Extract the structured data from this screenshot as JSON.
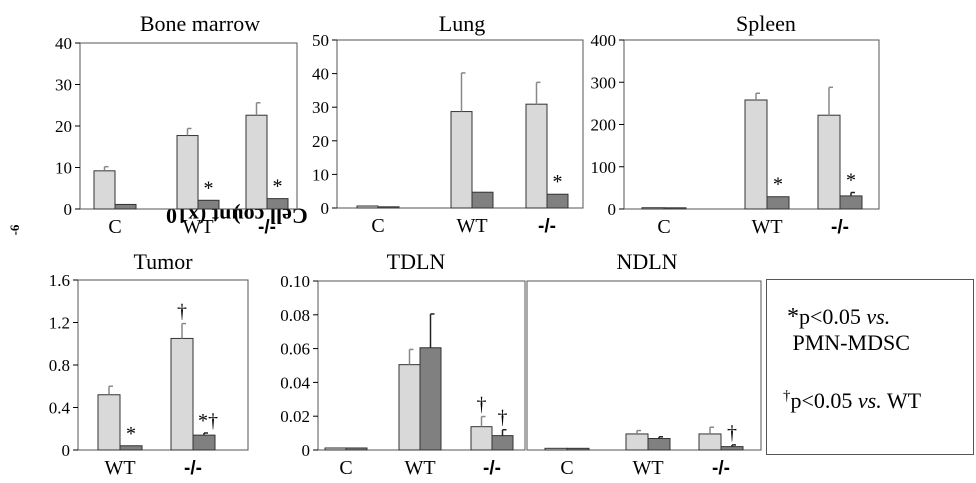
{
  "chart_data": [
    {
      "id": "bm",
      "type": "bar",
      "title": "Bone marrow",
      "categories": [
        "C",
        "WT",
        "-/-"
      ],
      "ylim": [
        0,
        40
      ],
      "yticks": [
        "0",
        "10",
        "20",
        "30",
        "40"
      ],
      "series": [
        {
          "values": [
            9.2,
            17.7,
            22.6
          ],
          "errors": [
            1,
            1.7,
            3
          ]
        },
        {
          "values": [
            1.1,
            2.1,
            2.5
          ],
          "errors": [
            0,
            0,
            0
          ]
        }
      ],
      "annotations": [
        {
          "cat": 1,
          "s": 1,
          "text": "*"
        },
        {
          "cat": 2,
          "s": 1,
          "text": "*"
        }
      ]
    },
    {
      "id": "lung",
      "type": "bar",
      "title": "Lung",
      "categories": [
        "C",
        "WT",
        "-/-"
      ],
      "ylim": [
        0,
        50
      ],
      "yticks": [
        "0",
        "10",
        "20",
        "30",
        "40",
        "50"
      ],
      "series": [
        {
          "values": [
            0.6,
            28.7,
            30.9
          ],
          "errors": [
            0,
            11.5,
            6.5
          ]
        },
        {
          "values": [
            0.3,
            4.7,
            4.1
          ],
          "errors": [
            0,
            0,
            0
          ]
        }
      ],
      "annotations": [
        {
          "cat": 2,
          "s": 1,
          "text": "*"
        }
      ]
    },
    {
      "id": "spleen",
      "type": "bar",
      "title": "Spleen",
      "categories": [
        "C",
        "WT",
        "-/-"
      ],
      "ylim": [
        0,
        400
      ],
      "yticks": [
        "0",
        "100",
        "200",
        "300",
        "400"
      ],
      "series": [
        {
          "values": [
            3,
            258,
            222
          ],
          "errors": [
            0,
            16,
            66
          ]
        },
        {
          "values": [
            2,
            29,
            31
          ],
          "errors": [
            0,
            0,
            8
          ]
        }
      ],
      "annotations": [
        {
          "cat": 1,
          "s": 1,
          "text": "*"
        },
        {
          "cat": 2,
          "s": 1,
          "text": "*"
        }
      ]
    },
    {
      "id": "tumor",
      "type": "bar",
      "title": "Tumor",
      "categories": [
        "WT",
        "-/-"
      ],
      "ylim": [
        0,
        1.6
      ],
      "yticks": [
        "0",
        "0.4",
        "0.8",
        "1.2",
        "1.6"
      ],
      "series": [
        {
          "values": [
            0.52,
            1.05
          ],
          "errors": [
            0.08,
            0.14
          ]
        },
        {
          "values": [
            0.04,
            0.14
          ],
          "errors": [
            0,
            0.02
          ]
        }
      ],
      "annotations": [
        {
          "cat": 0,
          "s": 1,
          "text": "*"
        },
        {
          "cat": 1,
          "s": 1,
          "text": "*†"
        },
        {
          "cat": 1,
          "s": 0,
          "text": "†"
        }
      ]
    },
    {
      "id": "tdln",
      "type": "bar",
      "title": "TDLN",
      "categories": [
        "C",
        "WT",
        "-/-"
      ],
      "ylim": [
        0,
        0.1
      ],
      "yticks": [
        "0",
        "0.02",
        "0.04",
        "0.06",
        "0.08",
        "0.10"
      ],
      "series": [
        {
          "values": [
            0.0012,
            0.0505,
            0.0138
          ],
          "errors": [
            0,
            0.009,
            0.006
          ]
        },
        {
          "values": [
            0.0012,
            0.0605,
            0.0085
          ],
          "errors": [
            0,
            0.02,
            0.0035
          ]
        }
      ],
      "annotations": [
        {
          "cat": 2,
          "s": 0,
          "text": "†"
        },
        {
          "cat": 2,
          "s": 1,
          "text": "†"
        }
      ]
    },
    {
      "id": "ndln",
      "type": "bar",
      "title": "NDLN",
      "categories": [
        "C",
        "WT",
        "-/-"
      ],
      "ylim": [
        0,
        0.1
      ],
      "yticks": [],
      "series": [
        {
          "values": [
            0.001,
            0.0095,
            0.0095
          ],
          "errors": [
            0,
            0.002,
            0.004
          ]
        },
        {
          "values": [
            0.001,
            0.0068,
            0.002
          ],
          "errors": [
            0,
            0.001,
            0.001
          ]
        }
      ],
      "annotations": [
        {
          "cat": 2,
          "s": 1,
          "text": "†"
        }
      ]
    }
  ],
  "y_axis_label": "Cell count (x10",
  "y_axis_exp": "-6",
  "y_axis_close": ")",
  "notes": {
    "star": "*",
    "sig1_a": "p<0.05 ",
    "sig1_vs": "vs.",
    "sig1_b": "PMN-MDSC",
    "dagger": "†",
    "sig2_a": "p<0.05 ",
    "sig2_vs": "vs.",
    "sig2_b": " WT"
  },
  "colors": {
    "series_a": "#d9d9d9",
    "series_b": "#808080",
    "edge": "#333333",
    "frame": "#555555"
  }
}
